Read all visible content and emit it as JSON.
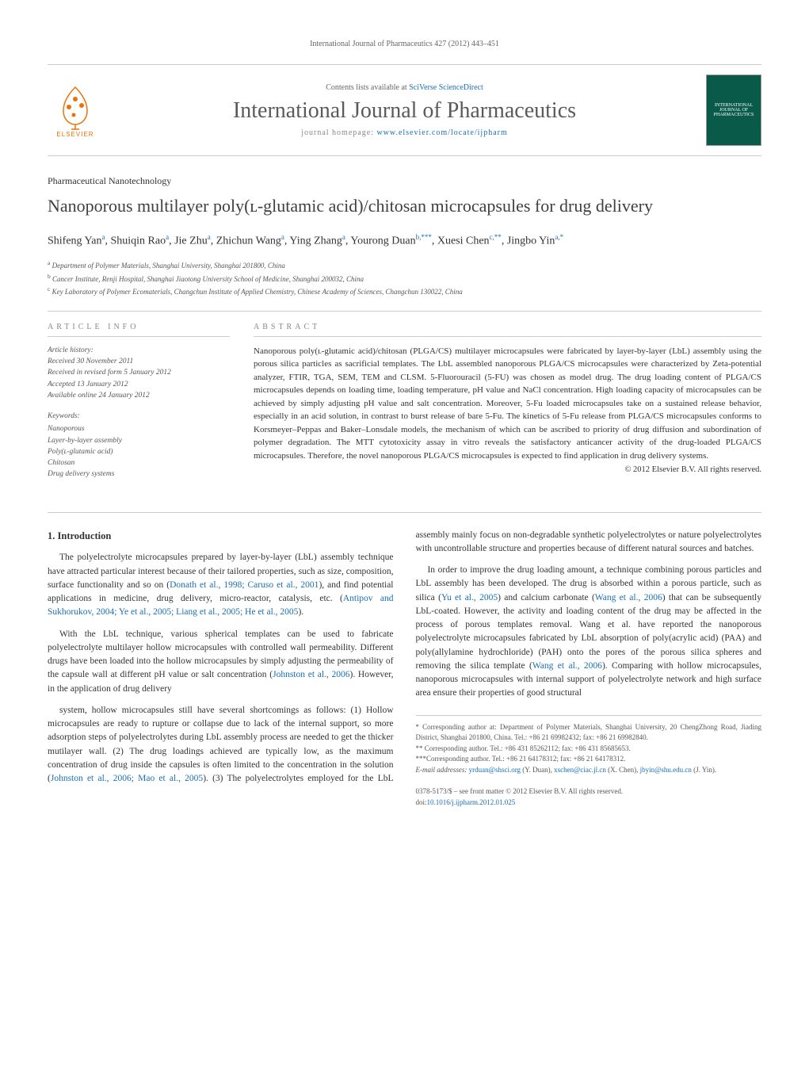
{
  "header": {
    "running_head": "International Journal of Pharmaceutics 427 (2012) 443–451",
    "contents_line_prefix": "Contents lists available at ",
    "contents_link": "SciVerse ScienceDirect",
    "journal_name": "International Journal of Pharmaceutics",
    "homepage_prefix": "journal homepage: ",
    "homepage_url": "www.elsevier.com/locate/ijpharm",
    "publisher_name": "ELSEVIER",
    "cover_text": "INTERNATIONAL JOURNAL OF PHARMACEUTICS"
  },
  "article": {
    "section_label": "Pharmaceutical Nanotechnology",
    "title": "Nanoporous multilayer poly(ʟ-glutamic acid)/chitosan microcapsules for drug delivery",
    "authors_html": "Shifeng Yan<sup>a</sup>, Shuiqin Rao<sup>a</sup>, Jie Zhu<sup>a</sup>, Zhichun Wang<sup>a</sup>, Ying Zhang<sup>a</sup>, Yourong Duan<sup>b,***</sup>, Xuesi Chen<sup>c,**</sup>, Jingbo Yin<sup>a,*</sup>",
    "affiliations": [
      {
        "key": "a",
        "text": "Department of Polymer Materials, Shanghai University, Shanghai 201800, China"
      },
      {
        "key": "b",
        "text": "Cancer Institute, Renji Hospital, Shanghai Jiaotong University School of Medicine, Shanghai 200032, China"
      },
      {
        "key": "c",
        "text": "Key Laboratory of Polymer Ecomaterials, Changchun Institute of Applied Chemistry, Chinese Academy of Sciences, Changchun 130022, China"
      }
    ]
  },
  "info": {
    "heading": "ARTICLE INFO",
    "history_label": "Article history:",
    "history": [
      "Received 30 November 2011",
      "Received in revised form 5 January 2012",
      "Accepted 13 January 2012",
      "Available online 24 January 2012"
    ],
    "keywords_label": "Keywords:",
    "keywords": [
      "Nanoporous",
      "Layer-by-layer assembly",
      "Poly(ʟ-glutamic acid)",
      "Chitosan",
      "Drug delivery systems"
    ]
  },
  "abstract": {
    "heading": "ABSTRACT",
    "text": "Nanoporous poly(ʟ-glutamic acid)/chitosan (PLGA/CS) multilayer microcapsules were fabricated by layer-by-layer (LbL) assembly using the porous silica particles as sacrificial templates. The LbL assembled nanoporous PLGA/CS microcapsules were characterized by Zeta-potential analyzer, FTIR, TGA, SEM, TEM and CLSM. 5-Fluorouracil (5-FU) was chosen as model drug. The drug loading content of PLGA/CS microcapsules depends on loading time, loading temperature, pH value and NaCl concentration. High loading capacity of microcapsules can be achieved by simply adjusting pH value and salt concentration. Moreover, 5-Fu loaded microcapsules take on a sustained release behavior, especially in an acid solution, in contrast to burst release of bare 5-Fu. The kinetics of 5-Fu release from PLGA/CS microcapsules conforms to Korsmeyer–Peppas and Baker–Lonsdale models, the mechanism of which can be ascribed to priority of drug diffusion and subordination of polymer degradation. The MTT cytotoxicity assay in vitro reveals the satisfactory anticancer activity of the drug-loaded PLGA/CS microcapsules. Therefore, the novel nanoporous PLGA/CS microcapsules is expected to find application in drug delivery systems.",
    "copyright": "© 2012 Elsevier B.V. All rights reserved."
  },
  "body": {
    "intro_heading": "1. Introduction",
    "paragraphs": [
      "The polyelectrolyte microcapsules prepared by layer-by-layer (LbL) assembly technique have attracted particular interest because of their tailored properties, such as size, composition, surface functionality and so on (<a>Donath et al., 1998; Caruso et al., 2001</a>), and find potential applications in medicine, drug delivery, micro-reactor, catalysis, etc. (<a>Antipov and Sukhorukov, 2004; Ye et al., 2005; Liang et al., 2005; He et al., 2005</a>).",
      "With the LbL technique, various spherical templates can be used to fabricate polyelectrolyte multilayer hollow microcapsules with controlled wall permeability. Different drugs have been loaded into the hollow microcapsules by simply adjusting the permeability of the capsule wall at different pH value or salt concentration (<a>Johnston et al., 2006</a>). However, in the application of drug delivery",
      "system, hollow microcapsules still have several shortcomings as follows: (1) Hollow microcapsules are ready to rupture or collapse due to lack of the internal support, so more adsorption steps of polyelectrolytes during LbL assembly process are needed to get the thicker mutilayer wall. (2) The drug loadings achieved are typically low, as the maximum concentration of drug inside the capsules is often limited to the concentration in the solution (<a>Johnston et al., 2006; Mao et al., 2005</a>). (3) The polyelectrolytes employed for the LbL assembly mainly focus on non-degradable synthetic polyelectrolytes or nature polyelectrolytes with uncontrollable structure and properties because of different natural sources and batches.",
      "In order to improve the drug loading amount, a technique combining porous particles and LbL assembly has been developed. The drug is absorbed within a porous particle, such as silica (<a>Yu et al., 2005</a>) and calcium carbonate (<a>Wang et al., 2006</a>) that can be subsequently LbL-coated. However, the activity and loading content of the drug may be affected in the process of porous templates removal. Wang et al. have reported the nanoporous polyelectrolyte microcapsules fabricated by LbL absorption of poly(acrylic acid) (PAA) and poly(allylamine hydrochloride) (PAH) onto the pores of the porous silica spheres and removing the silica template (<a>Wang et al., 2006</a>). Comparing with hollow microcapsules, nanoporous microcapsules with internal support of polyelectrolyte network and high surface area ensure their properties of good structural"
    ]
  },
  "footnotes": {
    "items": [
      "* Corresponding author at: Department of Polymer Materials, Shanghai University, 20 ChengZhong Road, Jiading District, Shanghai 201800, China. Tel.: +86 21 69982432; fax: +86 21 69982840.",
      "** Corresponding author. Tel.: +86 431 85262112; fax: +86 431 85685653.",
      "***Corresponding author. Tel.: +86 21 64178312; fax: +86 21 64178312."
    ],
    "email_label": "E-mail addresses: ",
    "emails": [
      {
        "addr": "yrduan@shsci.org",
        "who": "(Y. Duan)"
      },
      {
        "addr": "xschen@ciac.jl.cn",
        "who": "(X. Chen)"
      },
      {
        "addr": "jbyin@shu.edu.cn",
        "who": "(J. Yin)"
      }
    ]
  },
  "bottom": {
    "line1": "0378-5173/$ – see front matter © 2012 Elsevier B.V. All rights reserved.",
    "doi_prefix": "doi:",
    "doi": "10.1016/j.ijpharm.2012.01.025"
  },
  "style": {
    "link_color": "#1a6fb3",
    "accent_color": "#e8730c",
    "cover_bg": "#0a5a4a"
  }
}
